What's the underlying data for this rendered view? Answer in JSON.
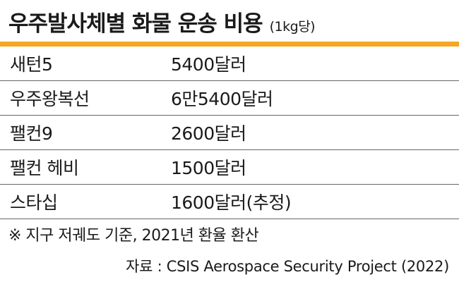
{
  "header": {
    "title": "우주발사체별 화물 운송 비용",
    "subtitle": "(1kg당)",
    "accent_color": "#f5a623"
  },
  "table": {
    "rows": [
      {
        "name": "새턴5",
        "cost": "5400달러"
      },
      {
        "name": "우주왕복선",
        "cost": "6만5400달러"
      },
      {
        "name": "팰컨9",
        "cost": "2600달러"
      },
      {
        "name": "팰컨 헤비",
        "cost": "1500달러"
      },
      {
        "name": "스타십",
        "cost": "1600달러(추정)"
      }
    ]
  },
  "footer": {
    "note": "※ 지구 저궤도 기준, 2021년 환율 환산",
    "source": "자료 : CSIS Aerospace Security Project (2022)"
  }
}
